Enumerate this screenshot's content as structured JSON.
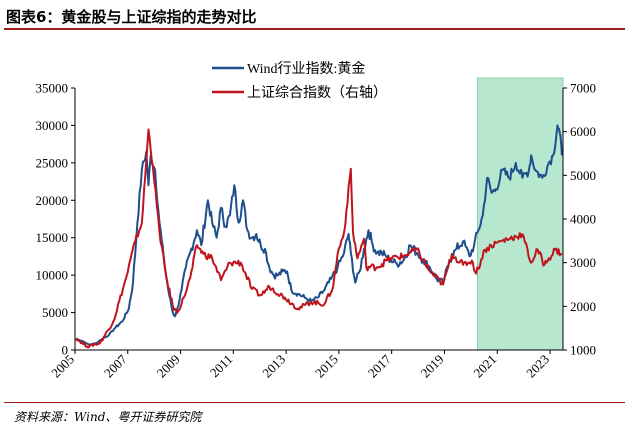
{
  "title": "图表6：黄金股与上证综指的走势对比",
  "source": "资料来源：Wind、粤开证券研究院",
  "chart_data": {
    "type": "line",
    "title": "图表6：黄金股与上证综指的走势对比",
    "xlabel": "",
    "ylabel": "",
    "legend_position": "top-center",
    "grid": false,
    "x_axis": {
      "type": "date",
      "range": [
        "2005-01-01",
        "2023-06-30"
      ],
      "ticks": [
        "2005",
        "2007",
        "2009",
        "2011",
        "2013",
        "2015",
        "2017",
        "2019",
        "2021",
        "2023"
      ]
    },
    "y_left": {
      "range": [
        0,
        35000
      ],
      "ticks": [
        0,
        5000,
        10000,
        15000,
        20000,
        25000,
        30000,
        35000
      ],
      "tick_labels": [
        "0",
        "5000",
        "10000",
        "15000",
        "20000",
        "25000",
        "30000",
        "35000"
      ]
    },
    "y_right": {
      "range": [
        1000,
        7000
      ],
      "ticks": [
        1000,
        2000,
        3000,
        4000,
        5000,
        6000,
        7000
      ],
      "tick_labels": [
        "1000",
        "2000",
        "3000",
        "4000",
        "5000",
        "6000",
        "7000"
      ]
    },
    "highlight": {
      "x_range": [
        "2020-04-01",
        "2023-06-30"
      ],
      "color": "#b7e8cf"
    },
    "series": [
      {
        "name": "Wind行业指数:黄金",
        "axis": "left",
        "color": "#1f4e8c",
        "x": [
          "2005-01",
          "2005-04",
          "2005-07",
          "2005-10",
          "2006-01",
          "2006-04",
          "2006-07",
          "2006-10",
          "2007-01",
          "2007-03",
          "2007-05",
          "2007-07",
          "2007-09",
          "2007-10",
          "2007-11",
          "2008-01",
          "2008-03",
          "2008-05",
          "2008-07",
          "2008-09",
          "2008-10",
          "2008-11",
          "2009-01",
          "2009-03",
          "2009-05",
          "2009-08",
          "2009-10",
          "2010-01",
          "2010-03",
          "2010-05",
          "2010-07",
          "2010-09",
          "2010-11",
          "2011-01",
          "2011-03",
          "2011-05",
          "2011-07",
          "2011-09",
          "2011-11",
          "2012-01",
          "2012-03",
          "2012-05",
          "2012-07",
          "2012-09",
          "2012-11",
          "2013-01",
          "2013-03",
          "2013-06",
          "2013-09",
          "2013-12",
          "2014-03",
          "2014-06",
          "2014-09",
          "2014-12",
          "2015-03",
          "2015-05",
          "2015-06",
          "2015-08",
          "2015-10",
          "2015-12",
          "2016-02",
          "2016-04",
          "2016-06",
          "2016-08",
          "2016-10",
          "2016-12",
          "2017-03",
          "2017-06",
          "2017-09",
          "2017-12",
          "2018-03",
          "2018-06",
          "2018-09",
          "2018-12",
          "2019-03",
          "2019-06",
          "2019-09",
          "2019-12",
          "2020-02",
          "2020-04",
          "2020-06",
          "2020-08",
          "2020-10",
          "2020-12",
          "2021-03",
          "2021-06",
          "2021-09",
          "2021-12",
          "2022-03",
          "2022-04",
          "2022-06",
          "2022-09",
          "2022-12",
          "2023-02",
          "2023-04",
          "2023-05",
          "2023-06"
        ],
        "values": [
          1500,
          1200,
          700,
          900,
          1500,
          2000,
          3000,
          3800,
          5500,
          9000,
          17000,
          24000,
          26500,
          22000,
          26000,
          24000,
          17000,
          12000,
          8000,
          5000,
          4500,
          5500,
          8000,
          11000,
          13000,
          16000,
          14000,
          20000,
          17000,
          15000,
          19000,
          16500,
          18000,
          22000,
          17000,
          20000,
          16000,
          15000,
          15500,
          14000,
          13500,
          11000,
          10000,
          10000,
          10500,
          10500,
          8000,
          7500,
          7000,
          6500,
          7000,
          8000,
          9500,
          11000,
          13000,
          15500,
          13000,
          9000,
          10500,
          13500,
          16000,
          14000,
          13000,
          13000,
          12500,
          12000,
          11500,
          12000,
          14000,
          13000,
          12000,
          11000,
          9500,
          9000,
          12000,
          13500,
          14500,
          12500,
          14000,
          16000,
          18000,
          23000,
          21000,
          21500,
          24000,
          23000,
          25000,
          23000,
          24000,
          26000,
          24000,
          23000,
          25000,
          26000,
          30000,
          29000,
          26000
        ]
      },
      {
        "name": "上证综合指数（右轴）",
        "axis": "right",
        "color": "#c0141c",
        "x": [
          "2005-01",
          "2005-06",
          "2005-12",
          "2006-06",
          "2006-12",
          "2007-04",
          "2007-07",
          "2007-10",
          "2007-12",
          "2008-03",
          "2008-06",
          "2008-09",
          "2008-11",
          "2009-02",
          "2009-05",
          "2009-08",
          "2009-11",
          "2010-03",
          "2010-07",
          "2010-11",
          "2011-04",
          "2011-09",
          "2012-01",
          "2012-05",
          "2012-12",
          "2013-06",
          "2013-12",
          "2014-06",
          "2014-10",
          "2014-12",
          "2015-03",
          "2015-06",
          "2015-07",
          "2015-09",
          "2015-12",
          "2016-01",
          "2016-06",
          "2016-12",
          "2017-06",
          "2017-12",
          "2018-06",
          "2018-12",
          "2019-04",
          "2019-09",
          "2020-01",
          "2020-03",
          "2020-07",
          "2020-12",
          "2021-03",
          "2021-06",
          "2021-09",
          "2021-12",
          "2022-04",
          "2022-07",
          "2022-10",
          "2022-12",
          "2023-03",
          "2023-06"
        ],
        "values": [
          1270,
          1080,
          1160,
          1650,
          2680,
          3500,
          3900,
          6050,
          5200,
          3700,
          2700,
          2000,
          1850,
          2200,
          2650,
          3400,
          3200,
          3100,
          2600,
          3000,
          3000,
          2400,
          2250,
          2450,
          2200,
          1950,
          2100,
          2050,
          2450,
          3200,
          3700,
          5150,
          3700,
          3100,
          3550,
          2900,
          2900,
          3100,
          3150,
          3300,
          2800,
          2500,
          3200,
          2950,
          3050,
          2750,
          3300,
          3450,
          3500,
          3550,
          3600,
          3650,
          3000,
          3300,
          2950,
          3100,
          3300,
          3200
        ]
      }
    ]
  }
}
